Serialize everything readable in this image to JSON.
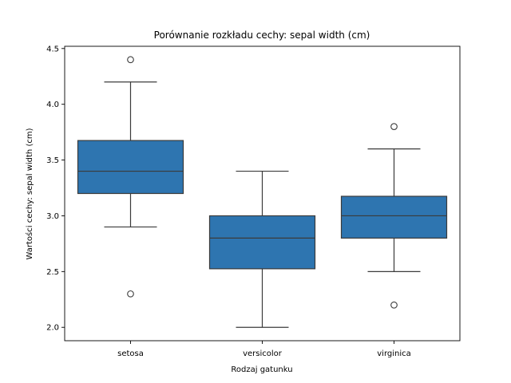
{
  "chart_data": {
    "type": "box",
    "title": "Porównanie rozkładu cechy: sepal width (cm)",
    "xlabel": "Rodzaj gatunku",
    "ylabel": "Wartości cechy: sepal width (cm)",
    "ylim": [
      1.88,
      4.52
    ],
    "yticks": [
      "2.0",
      "2.5",
      "3.0",
      "3.5",
      "4.0",
      "4.5"
    ],
    "categories": [
      "setosa",
      "versicolor",
      "virginica"
    ],
    "box_color": "#2e75b0",
    "grid": false,
    "boxes": [
      {
        "category": "setosa",
        "whisker_low": 2.9,
        "q1": 3.2,
        "median": 3.4,
        "q3": 3.675,
        "whisker_high": 4.2,
        "outliers": [
          2.3,
          4.4
        ]
      },
      {
        "category": "versicolor",
        "whisker_low": 2.0,
        "q1": 2.525,
        "median": 2.8,
        "q3": 3.0,
        "whisker_high": 3.4,
        "outliers": []
      },
      {
        "category": "virginica",
        "whisker_low": 2.5,
        "q1": 2.8,
        "median": 3.0,
        "q3": 3.175,
        "whisker_high": 3.6,
        "outliers": [
          2.2,
          3.8
        ]
      }
    ]
  }
}
